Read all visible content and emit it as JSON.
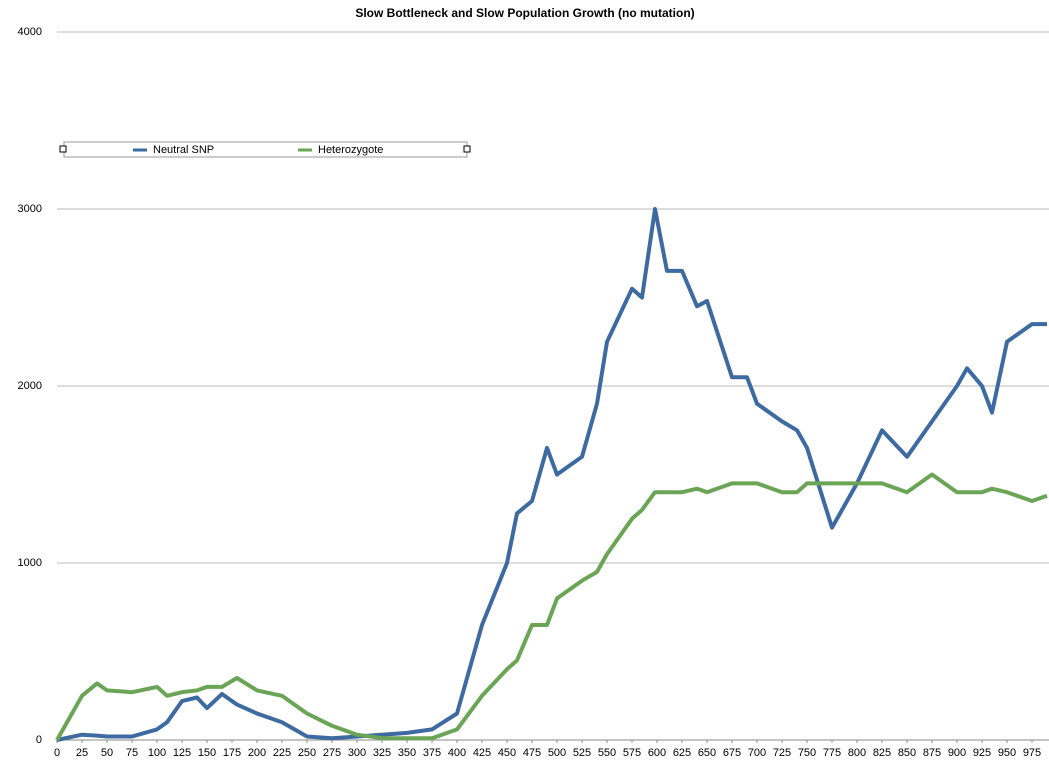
{
  "chart_data": {
    "type": "line",
    "title": "Slow Bottleneck and Slow Population Growth (no mutation)",
    "x": [
      0,
      25,
      40,
      50,
      75,
      100,
      110,
      125,
      140,
      150,
      165,
      180,
      200,
      225,
      250,
      275,
      300,
      325,
      350,
      375,
      400,
      425,
      450,
      460,
      475,
      490,
      500,
      525,
      540,
      550,
      575,
      585,
      598,
      610,
      625,
      640,
      650,
      675,
      690,
      700,
      725,
      740,
      750,
      775,
      800,
      825,
      850,
      875,
      900,
      910,
      925,
      935,
      950,
      975,
      990
    ],
    "series": [
      {
        "name": "Neutral SNP",
        "color": "#3d6aa0",
        "values": [
          0,
          30,
          25,
          20,
          20,
          60,
          100,
          220,
          240,
          180,
          260,
          200,
          150,
          100,
          20,
          10,
          20,
          30,
          40,
          60,
          150,
          650,
          1000,
          1280,
          1350,
          1650,
          1500,
          1600,
          1900,
          2250,
          2550,
          2500,
          3000,
          2650,
          2650,
          2450,
          2480,
          2050,
          2050,
          1900,
          1800,
          1750,
          1650,
          1200,
          1450,
          1750,
          1600,
          1800,
          2000,
          2100,
          2000,
          1850,
          2250,
          2350,
          2350
        ]
      },
      {
        "name": "Heterozygote",
        "color": "#6aa556",
        "values": [
          0,
          250,
          320,
          280,
          270,
          300,
          250,
          270,
          280,
          300,
          300,
          350,
          280,
          250,
          150,
          80,
          30,
          10,
          10,
          10,
          60,
          250,
          400,
          450,
          650,
          650,
          800,
          900,
          950,
          1050,
          1250,
          1300,
          1400,
          1400,
          1400,
          1420,
          1400,
          1450,
          1450,
          1450,
          1400,
          1400,
          1450,
          1450,
          1450,
          1450,
          1400,
          1500,
          1400,
          1400,
          1400,
          1420,
          1400,
          1350,
          1380
        ]
      }
    ],
    "xlim": [
      0,
      992
    ],
    "xticks": [
      0,
      25,
      50,
      75,
      100,
      125,
      150,
      175,
      200,
      225,
      250,
      275,
      300,
      325,
      350,
      375,
      400,
      425,
      450,
      475,
      500,
      525,
      550,
      575,
      600,
      625,
      650,
      675,
      700,
      725,
      750,
      775,
      800,
      825,
      850,
      875,
      900,
      925,
      950,
      975
    ],
    "ylim": [
      0,
      4000
    ],
    "yticks": [
      0,
      1000,
      2000,
      3000,
      4000
    ],
    "grid": true
  }
}
